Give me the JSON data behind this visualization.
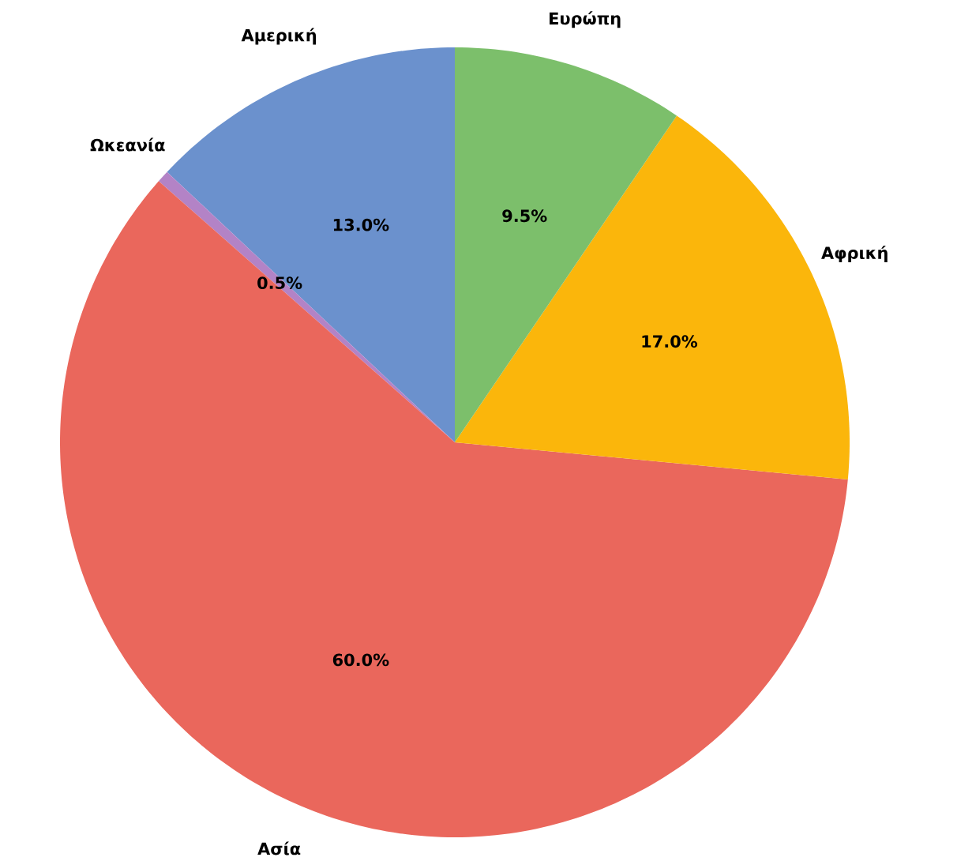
{
  "chart_data": {
    "type": "pie",
    "categories": [
      "Αμερική",
      "Ωκεανία",
      "Ασία",
      "Αφρική",
      "Ευρώπη"
    ],
    "values": [
      13.0,
      0.5,
      60.0,
      17.0,
      9.5
    ],
    "colors": [
      "#6b91cd",
      "#b383c6",
      "#ea675c",
      "#fbb60b",
      "#7cbf6b"
    ],
    "value_labels": [
      "13.0%",
      "0.5%",
      "60.0%",
      "17.0%",
      "9.5%"
    ]
  }
}
